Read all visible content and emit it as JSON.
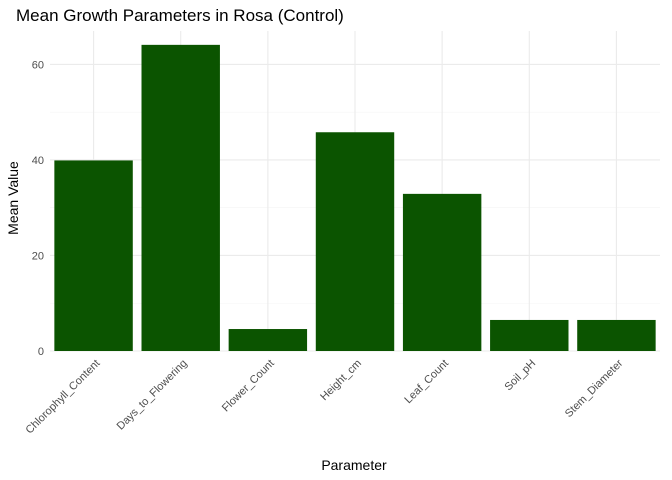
{
  "chart_data": {
    "type": "bar",
    "title": "Mean Growth Parameters in Rosa (Control)",
    "xlabel": "Parameter",
    "ylabel": "Mean Value",
    "categories": [
      "Chlorophyll_Content",
      "Days_to_Flowering",
      "Flower_Count",
      "Height_cm",
      "Leaf_Count",
      "Soil_pH",
      "Stem_Diameter"
    ],
    "values": [
      39.9,
      64.1,
      4.6,
      45.8,
      32.9,
      6.5,
      6.5
    ],
    "ylim": [
      0,
      67
    ],
    "yticks": [
      0,
      20,
      40,
      60
    ],
    "grid": true,
    "legend": "none",
    "bar_color": "#0b5400"
  }
}
